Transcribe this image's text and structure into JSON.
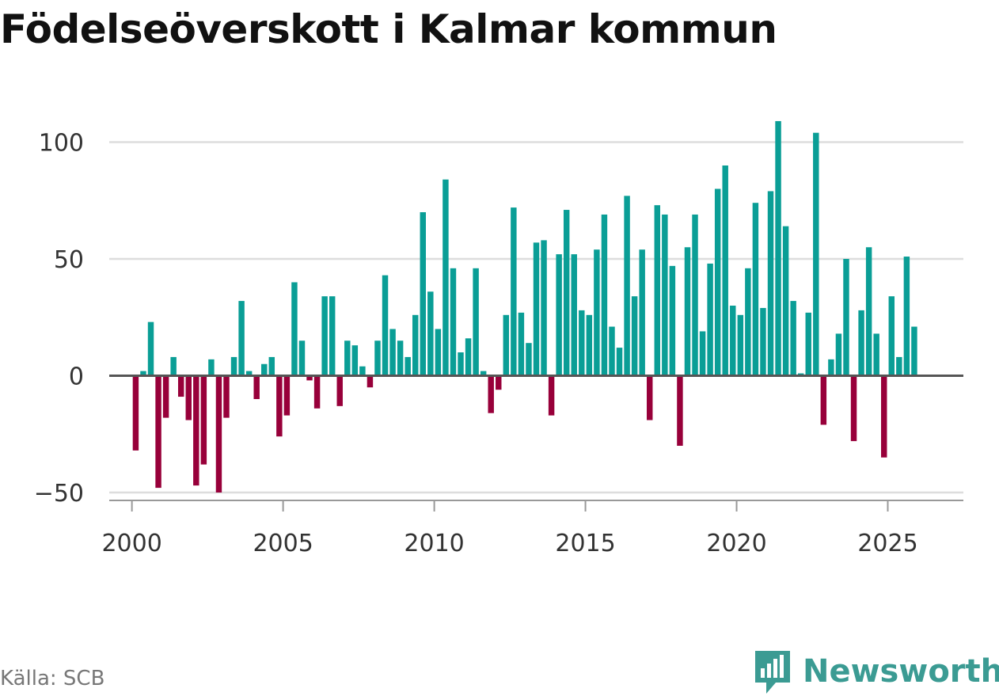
{
  "title": "Födelseöverskott i Kalmar kommun",
  "source": "Källa: SCB",
  "brand": {
    "name": "Newsworthy",
    "icon": "newsworthy-logo-icon"
  },
  "colors": {
    "positive": "#0a9e96",
    "negative": "#98003a",
    "grid": "#dddddd",
    "zero_line": "#555555",
    "brand": "#3b9b93"
  },
  "chart_data": {
    "type": "bar",
    "title": "Födelseöverskott i Kalmar kommun",
    "xlabel": "",
    "ylabel": "",
    "ylim": [
      -50,
      110
    ],
    "xlim": [
      1999.25,
      2027.5
    ],
    "yticks": [
      -50,
      0,
      50,
      100
    ],
    "ytick_labels": [
      "−50",
      "0",
      "50",
      "100"
    ],
    "xticks": [
      2000,
      2005,
      2010,
      2015,
      2020,
      2025
    ],
    "xtick_labels": [
      "2000",
      "2005",
      "2010",
      "2015",
      "2020",
      "2025"
    ],
    "frequency": "monthly (every 3 months) from 2000",
    "start_year": 2000,
    "step_years": 0.25,
    "values": [
      -32,
      2,
      23,
      -48,
      -18,
      8,
      -9,
      -19,
      -47,
      -38,
      7,
      -50,
      -18,
      8,
      32,
      2,
      -10,
      5,
      8,
      -26,
      -17,
      40,
      15,
      -2,
      -14,
      34,
      34,
      -13,
      15,
      13,
      4,
      -5,
      15,
      43,
      20,
      15,
      8,
      26,
      70,
      36,
      20,
      84,
      46,
      10,
      16,
      46,
      2,
      -16,
      -6,
      26,
      72,
      27,
      14,
      57,
      58,
      -17,
      52,
      71,
      52,
      28,
      26,
      54,
      69,
      21,
      12,
      77,
      34,
      54,
      -19,
      73,
      69,
      47,
      -30,
      55,
      69,
      19,
      48,
      80,
      90,
      30,
      26,
      46,
      74,
      29,
      79,
      109,
      64,
      32,
      1,
      27,
      104,
      -21,
      7,
      18,
      50,
      -28,
      28,
      55,
      18,
      -35,
      34,
      8,
      51,
      21
    ]
  }
}
